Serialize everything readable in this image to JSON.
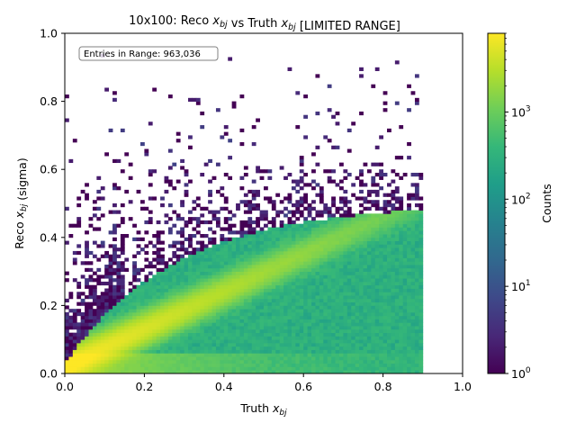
{
  "chart_data": {
    "type": "heatmap",
    "title_parts": [
      {
        "text": "10x100: Reco ",
        "sub": ""
      },
      {
        "text": "x",
        "sub": "bj"
      },
      {
        "text": " vs Truth ",
        "sub": ""
      },
      {
        "text": "x",
        "sub": "bj"
      },
      {
        "text": " [LIMITED RANGE]",
        "sub": ""
      }
    ],
    "xlabel_parts": [
      {
        "text": "Truth ",
        "sub": ""
      },
      {
        "text": "x",
        "sub": "bj"
      }
    ],
    "ylabel_parts": [
      {
        "text": "Reco ",
        "sub": ""
      },
      {
        "text": "x",
        "sub": "bj"
      },
      {
        "text": " (sigma)",
        "sub": ""
      }
    ],
    "xlim": [
      0.0,
      1.0
    ],
    "ylim": [
      0.0,
      1.0
    ],
    "x_ticks": [
      "0.0",
      "0.2",
      "0.4",
      "0.6",
      "0.8",
      "1.0"
    ],
    "y_ticks": [
      "0.0",
      "0.2",
      "0.4",
      "0.6",
      "0.8",
      "1.0"
    ],
    "stats_text": "Entries in Range: 963,036",
    "stats_position": "top-left",
    "truth_range_filled": [
      0.0,
      0.9
    ],
    "bins": [
      100,
      100
    ],
    "colorbar": {
      "label": "Counts",
      "scale": "log",
      "range": [
        1,
        8000
      ],
      "colormap": "viridis",
      "ticks": [
        {
          "value": 1,
          "base": "10",
          "exp": "0"
        },
        {
          "value": 10,
          "base": "10",
          "exp": "1"
        },
        {
          "value": 100,
          "base": "10",
          "exp": "2"
        },
        {
          "value": 1000,
          "base": "10",
          "exp": "3"
        }
      ]
    },
    "description_features": {
      "diagonal_peak_counts": 8000,
      "saturation_reco_value": 0.47,
      "bulk_counts": 300
    }
  },
  "colors": {
    "viridis": [
      "#440154",
      "#482878",
      "#3e4989",
      "#31688e",
      "#26828e",
      "#1f9e89",
      "#35b779",
      "#6ece58",
      "#b5de2b",
      "#fde725"
    ]
  }
}
